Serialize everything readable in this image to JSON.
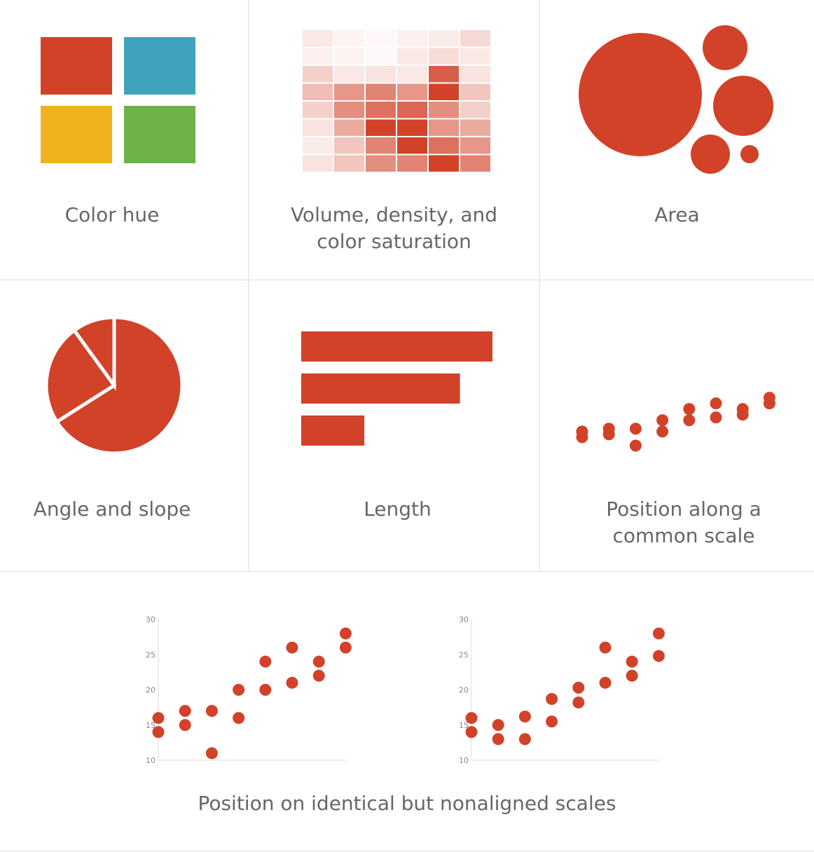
{
  "colors": {
    "accent": "#d14229",
    "hue_blue": "#3fa3bb",
    "hue_yellow": "#eeb31f",
    "hue_green": "#6db247",
    "grid_line": "#dddddd",
    "label_text": "#666666"
  },
  "cells": {
    "color_hue": {
      "label": "Color hue",
      "swatches": [
        "#d14229",
        "#3fa3bb",
        "#eeb31f",
        "#6db247"
      ]
    },
    "saturation": {
      "label": "Volume, density, and\ncolor saturation",
      "grid": [
        [
          0.12,
          0.06,
          0.04,
          0.08,
          0.1,
          0.2
        ],
        [
          0.08,
          0.06,
          0.03,
          0.12,
          0.18,
          0.12
        ],
        [
          0.25,
          0.12,
          0.15,
          0.12,
          0.85,
          0.15
        ],
        [
          0.35,
          0.55,
          0.65,
          0.55,
          1.0,
          0.3
        ],
        [
          0.25,
          0.6,
          0.75,
          0.8,
          0.6,
          0.25
        ],
        [
          0.15,
          0.45,
          1.0,
          1.0,
          0.55,
          0.45
        ],
        [
          0.1,
          0.3,
          0.65,
          1.0,
          0.75,
          0.55
        ],
        [
          0.15,
          0.3,
          0.6,
          0.65,
          1.0,
          0.65
        ]
      ]
    },
    "area": {
      "label": "Area",
      "circles": [
        {
          "name": "large",
          "r": 88
        },
        {
          "name": "top-right",
          "r": 32
        },
        {
          "name": "middle-right",
          "r": 43
        },
        {
          "name": "bottom-small",
          "r": 28
        },
        {
          "name": "bottom-tiny",
          "r": 13
        }
      ]
    },
    "angle": {
      "label": "Angle and slope",
      "slices": [
        0.66,
        0.24,
        0.1
      ]
    },
    "length": {
      "label": "Length",
      "bars": [
        1.0,
        0.83,
        0.33
      ]
    },
    "common_scale": {
      "label": "Position along a\ncommon scale",
      "points": [
        [
          1,
          16
        ],
        [
          1,
          14
        ],
        [
          2,
          17
        ],
        [
          2,
          15
        ],
        [
          3,
          17
        ],
        [
          3,
          11
        ],
        [
          4,
          20
        ],
        [
          4,
          16
        ],
        [
          5,
          24
        ],
        [
          5,
          20
        ],
        [
          6,
          26
        ],
        [
          6,
          21
        ],
        [
          7,
          24
        ],
        [
          7,
          22
        ],
        [
          8,
          28
        ],
        [
          8,
          26
        ]
      ]
    }
  },
  "bottom": {
    "label": "Position on identical but nonaligned scales",
    "chart_data": [
      {
        "type": "scatter",
        "ylim": [
          10,
          30
        ],
        "yticks": [
          "30",
          "25",
          "20",
          "15",
          "10"
        ],
        "xlim": [
          1,
          8
        ],
        "points": [
          [
            1,
            16
          ],
          [
            1,
            14
          ],
          [
            2,
            17
          ],
          [
            2,
            15
          ],
          [
            3,
            17
          ],
          [
            3,
            11
          ],
          [
            4,
            20
          ],
          [
            4,
            16
          ],
          [
            5,
            24
          ],
          [
            5,
            20
          ],
          [
            6,
            26
          ],
          [
            6,
            21
          ],
          [
            7,
            24
          ],
          [
            7,
            22
          ],
          [
            8,
            28
          ],
          [
            8,
            26
          ]
        ]
      },
      {
        "type": "scatter",
        "ylim": [
          10,
          30
        ],
        "yticks": [
          "30",
          "25",
          "20",
          "15",
          "10"
        ],
        "xlim": [
          1,
          8
        ],
        "points": [
          [
            1,
            16
          ],
          [
            1,
            14
          ],
          [
            2,
            15
          ],
          [
            2,
            13
          ],
          [
            3,
            16.2
          ],
          [
            3,
            13
          ],
          [
            4,
            18.7
          ],
          [
            4,
            15.5
          ],
          [
            5,
            20.3
          ],
          [
            5,
            18.2
          ],
          [
            6,
            26
          ],
          [
            6,
            21
          ],
          [
            7,
            24
          ],
          [
            7,
            22
          ],
          [
            8,
            28
          ],
          [
            8,
            24.8
          ]
        ]
      }
    ]
  }
}
